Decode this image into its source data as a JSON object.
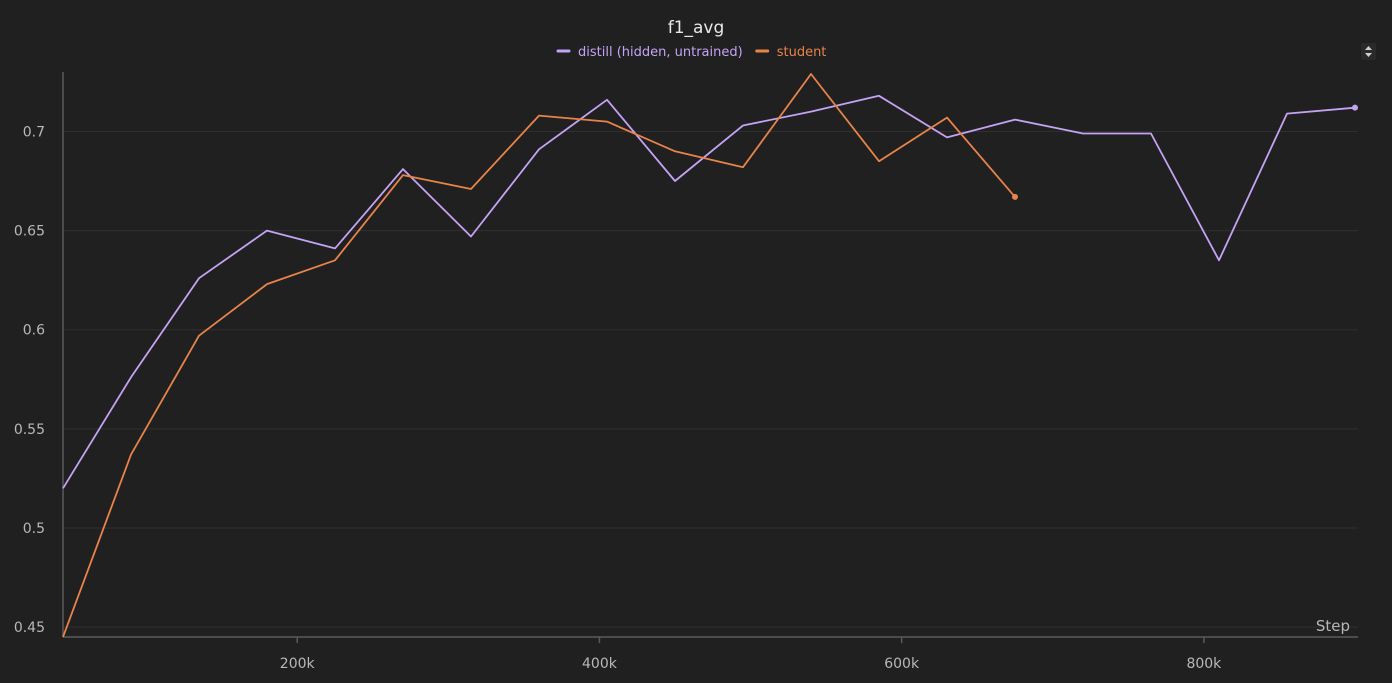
{
  "chart_data": {
    "type": "line",
    "title": "f1_avg",
    "xlabel": "Step",
    "ylabel": "",
    "xlim": [
      45000,
      902000
    ],
    "ylim": [
      0.445,
      0.73
    ],
    "x_ticks": [
      200000,
      400000,
      600000,
      800000
    ],
    "x_tick_labels": [
      "200k",
      "400k",
      "600k",
      "800k"
    ],
    "y_ticks": [
      0.45,
      0.5,
      0.55,
      0.6,
      0.65,
      0.7
    ],
    "y_tick_labels": [
      "0.45",
      "0.5",
      "0.55",
      "0.6",
      "0.65",
      "0.7"
    ],
    "grid": true,
    "legend_position": "top-center",
    "series": [
      {
        "name": "distill (hidden, untrained)",
        "color": "#c4a3f5",
        "x": [
          45000,
          90000,
          135000,
          180000,
          225000,
          270000,
          315000,
          360000,
          405000,
          450000,
          495000,
          540000,
          585000,
          630000,
          675000,
          720000,
          765000,
          810000,
          855000,
          900000
        ],
        "y": [
          0.52,
          0.576,
          0.626,
          0.65,
          0.641,
          0.681,
          0.647,
          0.691,
          0.716,
          0.675,
          0.703,
          0.71,
          0.718,
          0.697,
          0.706,
          0.699,
          0.699,
          0.635,
          0.709,
          0.712
        ]
      },
      {
        "name": "student",
        "color": "#e8834a",
        "x": [
          45000,
          90000,
          135000,
          180000,
          225000,
          270000,
          315000,
          360000,
          405000,
          450000,
          495000,
          540000,
          585000,
          630000,
          675000
        ],
        "y": [
          0.445,
          0.537,
          0.597,
          0.623,
          0.635,
          0.678,
          0.671,
          0.708,
          0.705,
          0.69,
          0.682,
          0.729,
          0.685,
          0.707,
          0.667
        ]
      }
    ]
  }
}
